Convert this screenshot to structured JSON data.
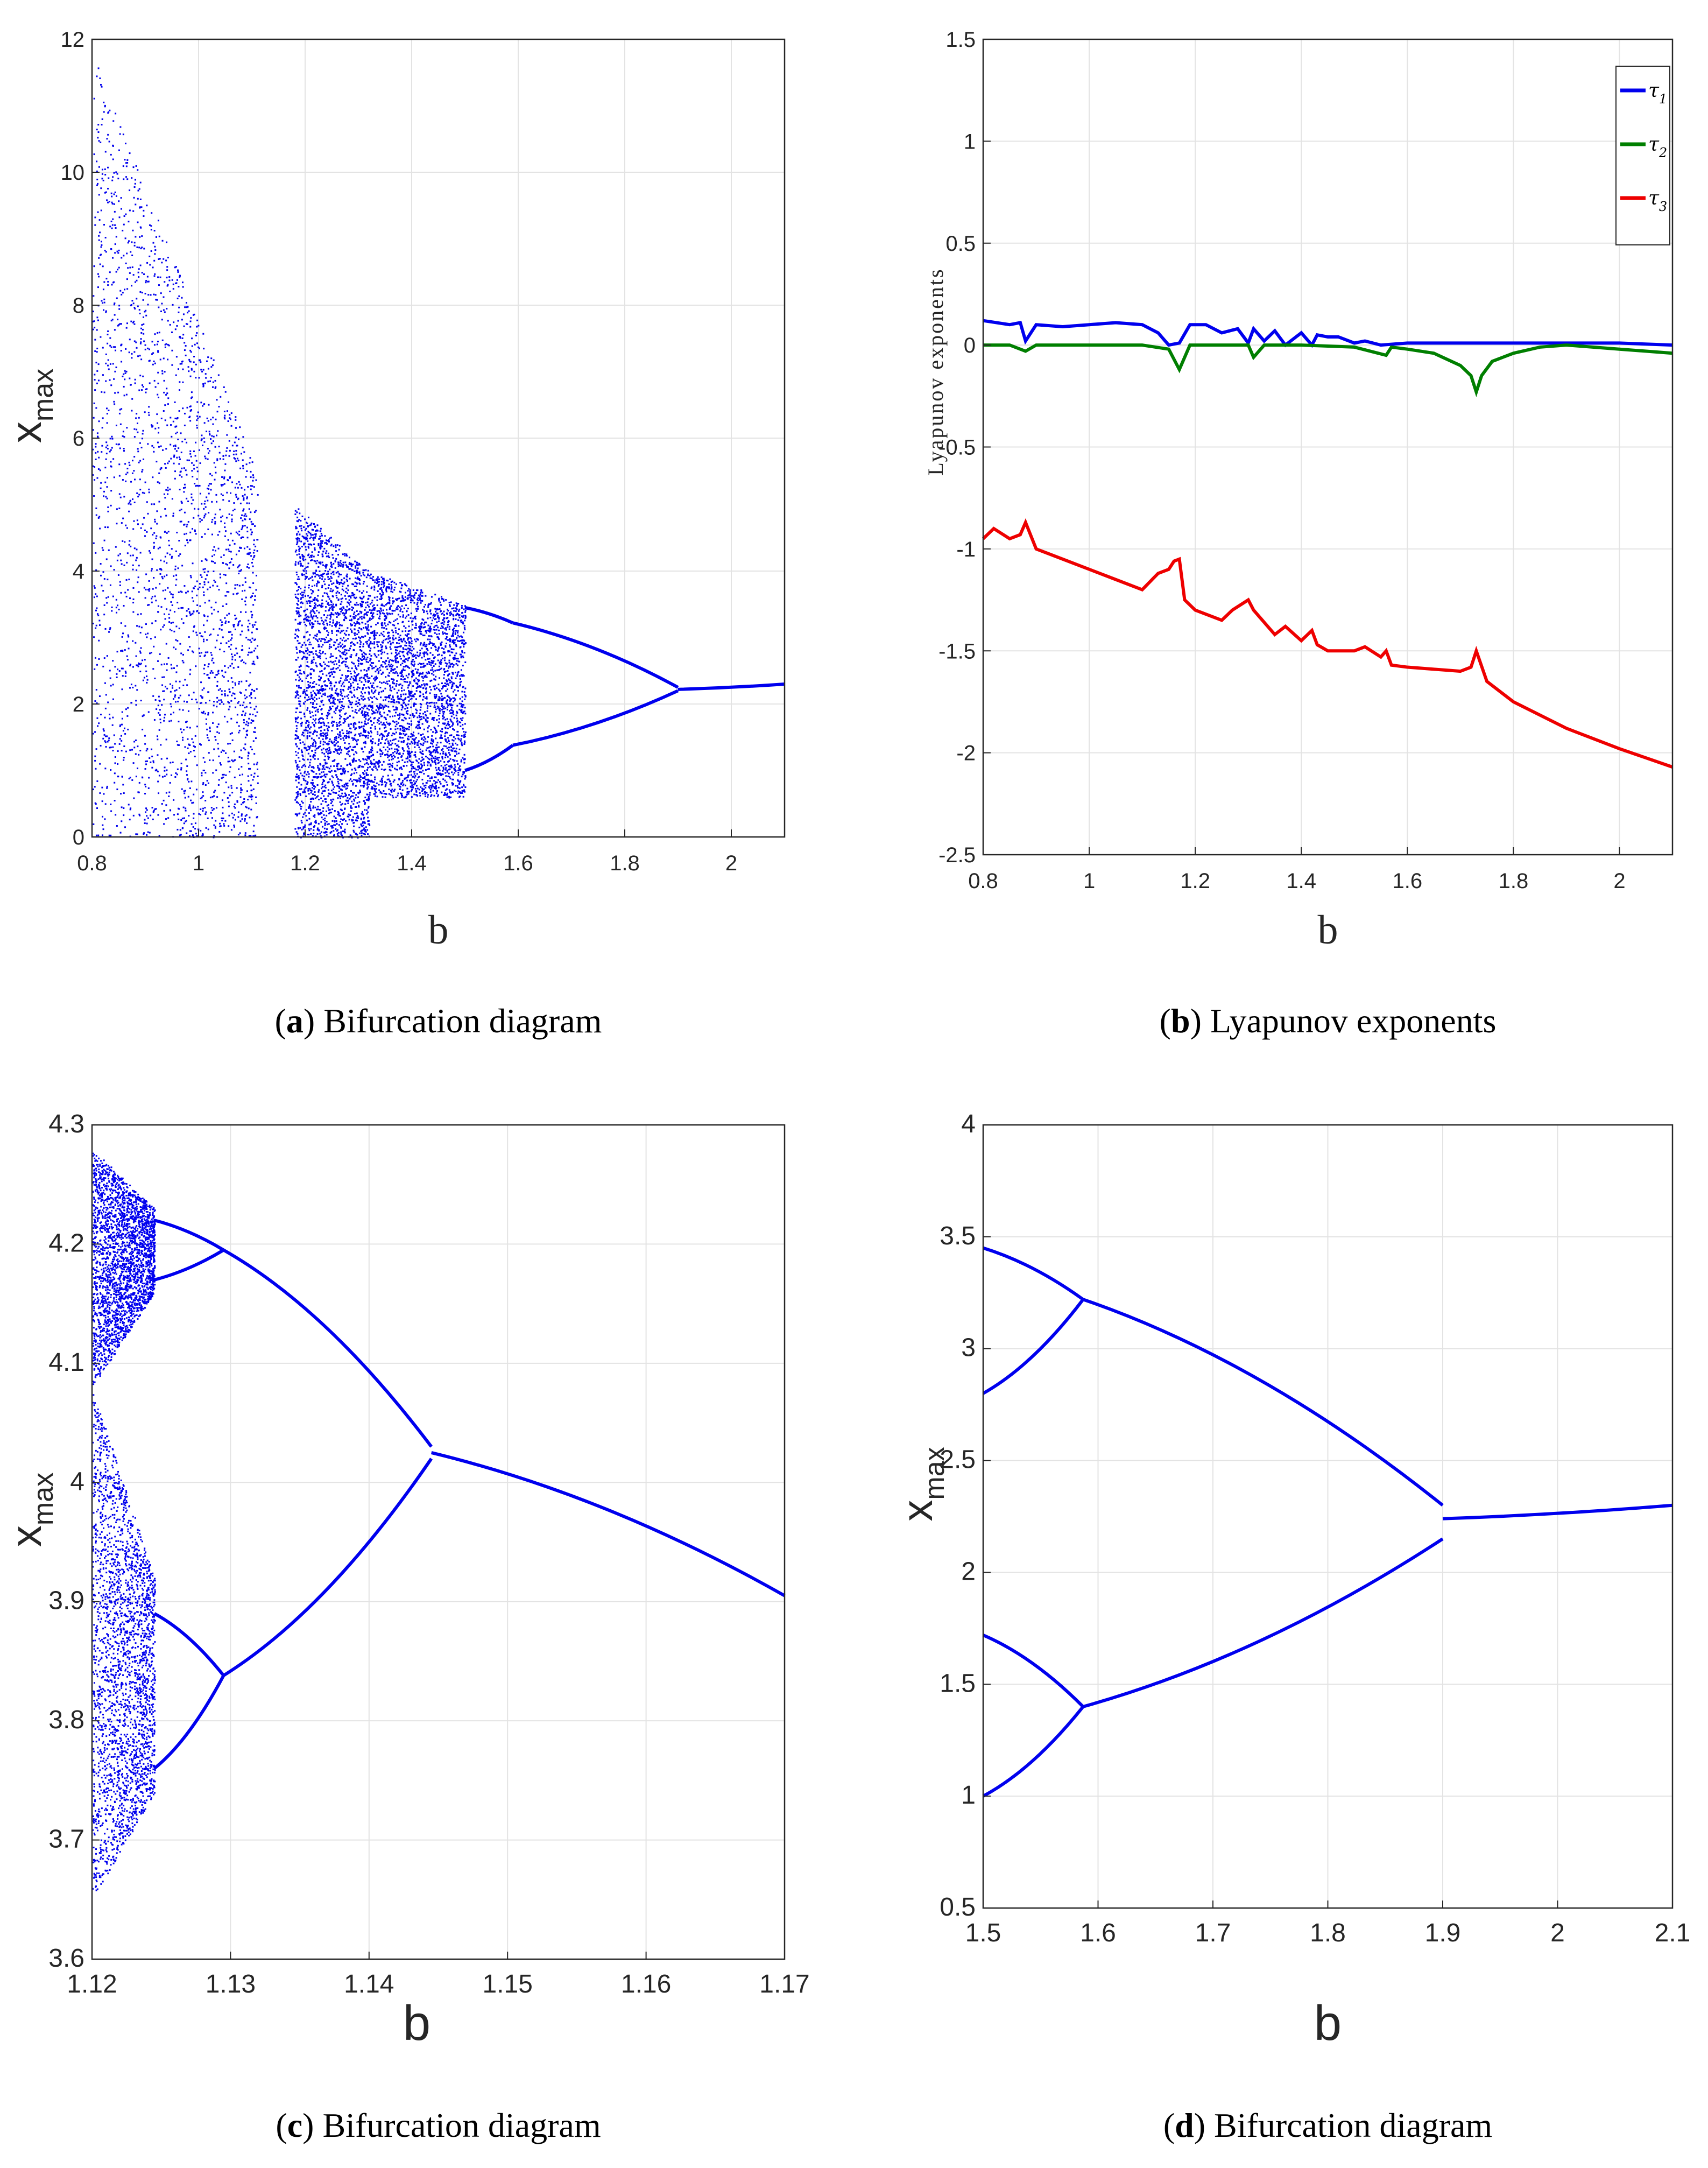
{
  "colors": {
    "blue": "#0000ee",
    "green": "#007f00",
    "red": "#ee0000",
    "grid": "#e3e3e3",
    "axis": "#262626"
  },
  "chart_data": [
    {
      "type": "scatter",
      "panel": "a",
      "caption": {
        "letter": "a",
        "text": "Bifurcation diagram"
      },
      "xlabel": "b",
      "ylabel": {
        "main": "x",
        "sub": "max"
      },
      "xlim": [
        0.8,
        2.1
      ],
      "ylim": [
        0,
        12
      ],
      "xticks": [
        "0.8",
        "1",
        "1.2",
        "1.4",
        "1.6",
        "1.8",
        "2"
      ],
      "xtick_values": [
        0.8,
        1.0,
        1.2,
        1.4,
        1.6,
        1.8,
        2.0
      ],
      "yticks": [
        "0",
        "2",
        "4",
        "6",
        "8",
        "10",
        "12"
      ],
      "ytick_values": [
        0,
        2,
        4,
        6,
        8,
        10,
        12
      ],
      "grid": true,
      "series": [
        {
          "color": "#0000ee",
          "chaotic_bands": [
            {
              "x": [
                0.8,
                1.11
              ],
              "y_min": 0.0,
              "y_max_start": 11.8,
              "y_max_end": 5.5
            },
            {
              "x": [
                1.18,
                1.32
              ],
              "y_min": 0.0,
              "y_max_start": 5.0,
              "y_max_end": 4.0
            },
            {
              "x": [
                1.32,
                1.5
              ],
              "y_min": 0.6,
              "y_max_start": 4.0,
              "y_max_end": 3.5
            }
          ],
          "branches": [
            {
              "x": [
                1.5,
                1.59
              ],
              "y": [
                3.45,
                3.22
              ]
            },
            {
              "x": [
                1.5,
                1.59
              ],
              "y": [
                1.0,
                1.38
              ]
            },
            {
              "x": [
                1.59,
                1.9
              ],
              "y": [
                3.22,
                2.25
              ]
            },
            {
              "x": [
                1.59,
                1.9
              ],
              "y": [
                1.38,
                2.2
              ]
            },
            {
              "x": [
                1.9,
                2.1
              ],
              "y": [
                2.22,
                2.3
              ]
            }
          ]
        }
      ]
    },
    {
      "type": "line",
      "panel": "b",
      "caption": {
        "letter": "b",
        "text": "Lyapunov exponents"
      },
      "xlabel": "b",
      "ylabel": "Lyapunov exponents",
      "xlim": [
        0.8,
        2.1
      ],
      "ylim": [
        -2.5,
        1.5
      ],
      "xticks": [
        "0.8",
        "1",
        "1.2",
        "1.4",
        "1.6",
        "1.8",
        "2"
      ],
      "xtick_values": [
        0.8,
        1.0,
        1.2,
        1.4,
        1.6,
        1.8,
        2.0
      ],
      "yticks": [
        "-2.5",
        "-2",
        "-1.5",
        "-1",
        "-0.5",
        "0",
        "0.5",
        "1",
        "1.5"
      ],
      "ytick_values": [
        -2.5,
        -2,
        -1.5,
        -1,
        -0.5,
        0,
        0.5,
        1,
        1.5
      ],
      "grid": true,
      "legend_position": "top-right",
      "series": [
        {
          "name": "τ1",
          "symbol": "τ",
          "subscript": "1",
          "color": "#0000ee",
          "x": [
            0.8,
            0.85,
            0.87,
            0.88,
            0.9,
            0.95,
            1.0,
            1.05,
            1.1,
            1.13,
            1.15,
            1.17,
            1.19,
            1.22,
            1.25,
            1.28,
            1.3,
            1.31,
            1.33,
            1.35,
            1.37,
            1.4,
            1.42,
            1.43,
            1.45,
            1.47,
            1.5,
            1.52,
            1.55,
            1.6,
            1.8,
            2.0,
            2.1
          ],
          "y": [
            0.12,
            0.1,
            0.11,
            0.02,
            0.1,
            0.09,
            0.1,
            0.11,
            0.1,
            0.06,
            0.0,
            0.01,
            0.1,
            0.1,
            0.06,
            0.08,
            0.01,
            0.08,
            0.02,
            0.07,
            0.0,
            0.06,
            0.0,
            0.05,
            0.04,
            0.04,
            0.01,
            0.02,
            0.0,
            0.01,
            0.01,
            0.01,
            0.0
          ]
        },
        {
          "name": "τ2",
          "symbol": "τ",
          "subscript": "2",
          "color": "#007f00",
          "x": [
            0.8,
            0.85,
            0.88,
            0.9,
            1.0,
            1.1,
            1.15,
            1.17,
            1.19,
            1.3,
            1.31,
            1.33,
            1.4,
            1.5,
            1.56,
            1.57,
            1.6,
            1.65,
            1.7,
            1.72,
            1.73,
            1.74,
            1.76,
            1.8,
            1.85,
            1.9,
            2.0,
            2.1
          ],
          "y": [
            0.0,
            0.0,
            -0.03,
            0.0,
            0.0,
            0.0,
            -0.02,
            -0.12,
            0.0,
            0.0,
            -0.06,
            0.0,
            0.0,
            -0.01,
            -0.05,
            -0.01,
            -0.02,
            -0.04,
            -0.1,
            -0.15,
            -0.23,
            -0.15,
            -0.08,
            -0.04,
            -0.01,
            0.0,
            -0.02,
            -0.04
          ]
        },
        {
          "name": "τ3",
          "symbol": "τ",
          "subscript": "3",
          "color": "#ee0000",
          "x": [
            0.8,
            0.82,
            0.85,
            0.87,
            0.88,
            0.9,
            0.95,
            1.0,
            1.05,
            1.08,
            1.1,
            1.13,
            1.15,
            1.16,
            1.17,
            1.18,
            1.2,
            1.25,
            1.27,
            1.3,
            1.31,
            1.32,
            1.35,
            1.37,
            1.4,
            1.42,
            1.43,
            1.45,
            1.5,
            1.52,
            1.55,
            1.56,
            1.57,
            1.6,
            1.7,
            1.72,
            1.73,
            1.75,
            1.8,
            1.9,
            2.0,
            2.1
          ],
          "y": [
            -0.95,
            -0.9,
            -0.95,
            -0.93,
            -0.87,
            -1.0,
            -1.05,
            -1.1,
            -1.15,
            -1.18,
            -1.2,
            -1.12,
            -1.1,
            -1.06,
            -1.05,
            -1.25,
            -1.3,
            -1.35,
            -1.3,
            -1.25,
            -1.3,
            -1.33,
            -1.42,
            -1.38,
            -1.45,
            -1.4,
            -1.47,
            -1.5,
            -1.5,
            -1.48,
            -1.53,
            -1.5,
            -1.57,
            -1.58,
            -1.6,
            -1.58,
            -1.5,
            -1.65,
            -1.75,
            -1.88,
            -1.98,
            -2.07
          ]
        }
      ]
    },
    {
      "type": "scatter",
      "panel": "c",
      "caption": {
        "letter": "c",
        "text": "Bifurcation diagram"
      },
      "xlabel": "b",
      "ylabel": {
        "main": "x",
        "sub": "max"
      },
      "xlim": [
        1.12,
        1.17
      ],
      "ylim": [
        3.6,
        4.3
      ],
      "xticks": [
        "1.12",
        "1.13",
        "1.14",
        "1.15",
        "1.16",
        "1.17"
      ],
      "xtick_values": [
        1.12,
        1.13,
        1.14,
        1.15,
        1.16,
        1.17
      ],
      "yticks": [
        "3.6",
        "3.7",
        "3.8",
        "3.9",
        "4",
        "4.1",
        "4.2",
        "4.3"
      ],
      "ytick_values": [
        3.6,
        3.7,
        3.8,
        3.9,
        4.0,
        4.1,
        4.2,
        4.3
      ],
      "grid": true,
      "series": [
        {
          "color": "#0000ee",
          "chaotic_bands": [
            {
              "x": [
                1.12,
                1.1245
              ],
              "y_min_start": 4.08,
              "y_min_end": 4.16,
              "y_max_start": 4.28,
              "y_max_end": 4.23
            },
            {
              "x": [
                1.12,
                1.1245
              ],
              "y_min_start": 3.65,
              "y_min_end": 3.74,
              "y_max_start": 4.08,
              "y_max_end": 3.92
            }
          ],
          "branches": [
            {
              "x": [
                1.1245,
                1.1295
              ],
              "y": [
                4.22,
                4.195
              ]
            },
            {
              "x": [
                1.1245,
                1.1295
              ],
              "y": [
                4.17,
                4.195
              ]
            },
            {
              "x": [
                1.1245,
                1.1295
              ],
              "y": [
                3.89,
                3.838
              ]
            },
            {
              "x": [
                1.1245,
                1.1295
              ],
              "y": [
                3.76,
                3.838
              ]
            },
            {
              "x": [
                1.1295,
                1.1445
              ],
              "y": [
                4.195,
                4.03
              ]
            },
            {
              "x": [
                1.1295,
                1.1445
              ],
              "y": [
                3.838,
                4.02
              ]
            },
            {
              "x": [
                1.1445,
                1.17
              ],
              "y": [
                4.025,
                3.905
              ]
            }
          ]
        }
      ]
    },
    {
      "type": "scatter",
      "panel": "d",
      "caption": {
        "letter": "d",
        "text": "Bifurcation diagram"
      },
      "xlabel": "b",
      "ylabel": {
        "main": "x",
        "sub": "max"
      },
      "xlim": [
        1.5,
        2.1
      ],
      "ylim": [
        0.5,
        4
      ],
      "xticks": [
        "1.5",
        "1.6",
        "1.7",
        "1.8",
        "1.9",
        "2",
        "2.1"
      ],
      "xtick_values": [
        1.5,
        1.6,
        1.7,
        1.8,
        1.9,
        2.0,
        2.1
      ],
      "yticks": [
        "0.5",
        "1",
        "1.5",
        "2",
        "2.5",
        "3",
        "3.5",
        "4"
      ],
      "ytick_values": [
        0.5,
        1.0,
        1.5,
        2.0,
        2.5,
        3.0,
        3.5,
        4.0
      ],
      "grid": true,
      "series": [
        {
          "color": "#0000ee",
          "branches": [
            {
              "x": [
                1.5,
                1.587
              ],
              "y": [
                3.45,
                3.22
              ]
            },
            {
              "x": [
                1.5,
                1.587
              ],
              "y": [
                2.8,
                3.22
              ]
            },
            {
              "x": [
                1.5,
                1.587
              ],
              "y": [
                1.72,
                1.4
              ]
            },
            {
              "x": [
                1.5,
                1.587
              ],
              "y": [
                1.0,
                1.4
              ]
            },
            {
              "x": [
                1.587,
                1.9
              ],
              "y": [
                3.22,
                2.3
              ]
            },
            {
              "x": [
                1.587,
                1.9
              ],
              "y": [
                1.4,
                2.15
              ]
            },
            {
              "x": [
                1.9,
                2.1
              ],
              "y": [
                2.24,
                2.3
              ]
            }
          ]
        }
      ]
    }
  ]
}
